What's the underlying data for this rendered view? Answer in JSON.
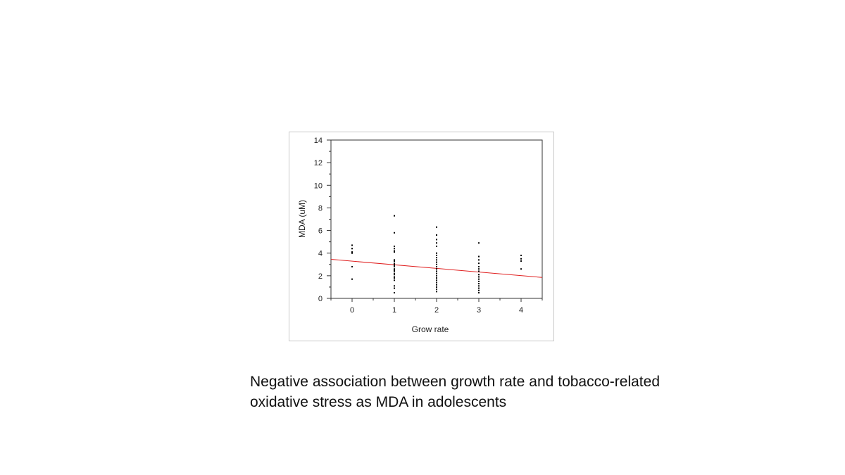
{
  "caption": "Negative association between growth rate and tobacco-related oxidative stress as MDA in adolescents",
  "chart_data": {
    "type": "scatter",
    "xlabel": "Grow rate",
    "ylabel": "MDA (uM)",
    "xlim": [
      -0.5,
      4.5
    ],
    "ylim": [
      0,
      14
    ],
    "x_ticks": [
      "0",
      "1",
      "2",
      "3",
      "4"
    ],
    "y_ticks": [
      "0",
      "2",
      "4",
      "6",
      "8",
      "10",
      "12",
      "14"
    ],
    "point_color": "#000000",
    "trendline_color": "#e02020",
    "trendline": {
      "x": [
        -0.5,
        4.5
      ],
      "y": [
        3.45,
        1.85
      ]
    },
    "points": [
      {
        "x": 0,
        "y": 4.7
      },
      {
        "x": 0,
        "y": 4.4
      },
      {
        "x": 0,
        "y": 4.1
      },
      {
        "x": 0,
        "y": 4.0
      },
      {
        "x": 0,
        "y": 2.8
      },
      {
        "x": 0,
        "y": 1.7
      },
      {
        "x": 1,
        "y": 7.3
      },
      {
        "x": 1,
        "y": 5.8
      },
      {
        "x": 1,
        "y": 4.6
      },
      {
        "x": 1,
        "y": 4.4
      },
      {
        "x": 1,
        "y": 4.2
      },
      {
        "x": 1,
        "y": 4.1
      },
      {
        "x": 1,
        "y": 3.4
      },
      {
        "x": 1,
        "y": 3.3
      },
      {
        "x": 1,
        "y": 3.1
      },
      {
        "x": 1,
        "y": 3.0
      },
      {
        "x": 1,
        "y": 2.9
      },
      {
        "x": 1,
        "y": 2.8
      },
      {
        "x": 1,
        "y": 2.6
      },
      {
        "x": 1,
        "y": 2.5
      },
      {
        "x": 1,
        "y": 2.4
      },
      {
        "x": 1,
        "y": 2.2
      },
      {
        "x": 1,
        "y": 2.1
      },
      {
        "x": 1,
        "y": 1.9
      },
      {
        "x": 1,
        "y": 1.8
      },
      {
        "x": 1,
        "y": 1.6
      },
      {
        "x": 1,
        "y": 1.1
      },
      {
        "x": 1,
        "y": 0.9
      },
      {
        "x": 1,
        "y": 0.5
      },
      {
        "x": 2,
        "y": 6.3
      },
      {
        "x": 2,
        "y": 5.6
      },
      {
        "x": 2,
        "y": 5.2
      },
      {
        "x": 2,
        "y": 4.9
      },
      {
        "x": 2,
        "y": 4.6
      },
      {
        "x": 2,
        "y": 4.0
      },
      {
        "x": 2,
        "y": 3.8
      },
      {
        "x": 2,
        "y": 3.6
      },
      {
        "x": 2,
        "y": 3.4
      },
      {
        "x": 2,
        "y": 3.2
      },
      {
        "x": 2,
        "y": 3.0
      },
      {
        "x": 2,
        "y": 2.8
      },
      {
        "x": 2,
        "y": 2.6
      },
      {
        "x": 2,
        "y": 2.4
      },
      {
        "x": 2,
        "y": 2.2
      },
      {
        "x": 2,
        "y": 2.0
      },
      {
        "x": 2,
        "y": 1.8
      },
      {
        "x": 2,
        "y": 1.6
      },
      {
        "x": 2,
        "y": 1.4
      },
      {
        "x": 2,
        "y": 1.2
      },
      {
        "x": 2,
        "y": 1.0
      },
      {
        "x": 2,
        "y": 0.8
      },
      {
        "x": 2,
        "y": 0.6
      },
      {
        "x": 3,
        "y": 4.9
      },
      {
        "x": 3,
        "y": 3.7
      },
      {
        "x": 3,
        "y": 3.4
      },
      {
        "x": 3,
        "y": 3.1
      },
      {
        "x": 3,
        "y": 2.8
      },
      {
        "x": 3,
        "y": 2.6
      },
      {
        "x": 3,
        "y": 2.4
      },
      {
        "x": 3,
        "y": 2.1
      },
      {
        "x": 3,
        "y": 1.9
      },
      {
        "x": 3,
        "y": 1.7
      },
      {
        "x": 3,
        "y": 1.5
      },
      {
        "x": 3,
        "y": 1.3
      },
      {
        "x": 3,
        "y": 1.1
      },
      {
        "x": 3,
        "y": 0.9
      },
      {
        "x": 3,
        "y": 0.7
      },
      {
        "x": 3,
        "y": 0.5
      },
      {
        "x": 4,
        "y": 3.8
      },
      {
        "x": 4,
        "y": 3.5
      },
      {
        "x": 4,
        "y": 3.3
      },
      {
        "x": 4,
        "y": 2.6
      }
    ]
  }
}
